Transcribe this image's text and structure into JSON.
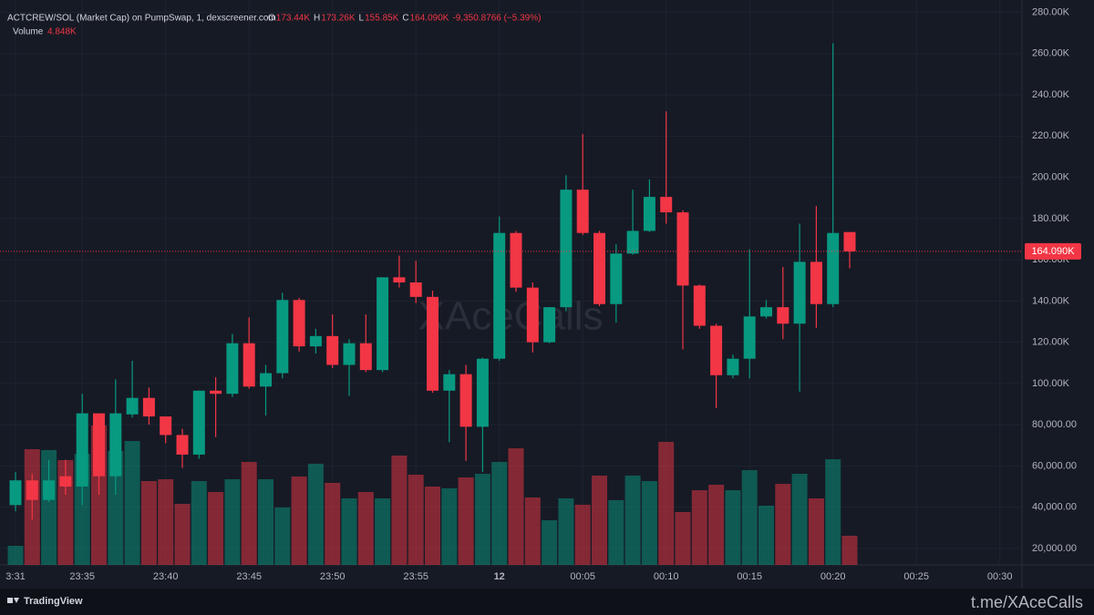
{
  "chart_data": {
    "type": "candlestick",
    "title": "ACTCREW/SOL (Market Cap) on PumpSwap, 1, dexscreener.com",
    "ohlc_legend": [
      {
        "key": "O",
        "text": "173.44K"
      },
      {
        "key": "H",
        "text": "173.26K"
      },
      {
        "key": "L",
        "text": "155.85K"
      },
      {
        "key": "C",
        "text": "164.090K"
      }
    ],
    "change_text": "-9,350.8766 (−5.39%)",
    "volume_title": "Volume",
    "volume_text": "4.848K",
    "last_label": "164.090K",
    "watermark": "XAceCalls",
    "brand": "TradingView",
    "footer_link": "t.me/XAceCalls",
    "up_color": "#089981",
    "down_color": "#f23645",
    "categories": [
      "3:31",
      null,
      null,
      null,
      "23:35",
      null,
      null,
      null,
      null,
      "23:40",
      null,
      null,
      null,
      null,
      "23:45",
      null,
      null,
      null,
      null,
      "23:50",
      null,
      null,
      null,
      null,
      "23:55",
      null,
      null,
      null,
      null,
      "12",
      null,
      null,
      null,
      null,
      "00:05",
      null,
      null,
      null,
      null,
      "00:10",
      null,
      null,
      null,
      null,
      "00:15",
      null,
      null,
      null,
      null,
      "00:20",
      null,
      null,
      null,
      null,
      "00:25",
      null,
      null,
      null,
      null,
      "00:30"
    ],
    "open": [
      41000,
      53000,
      43500,
      55000,
      50000,
      85500,
      55000,
      85000,
      93000,
      84000,
      75000,
      65500,
      96500,
      95000,
      119500,
      98500,
      105000,
      140500,
      118000,
      123000,
      109000,
      119500,
      106500,
      151500,
      149000,
      142000,
      96500,
      104500,
      79000,
      112000,
      173000,
      146500,
      120000,
      137000,
      194000,
      173000,
      138500,
      163000,
      174000,
      190500,
      183000,
      147500,
      128000,
      104000,
      112000,
      132500,
      137000,
      129000,
      159000,
      138500,
      173440,
      null,
      null,
      null,
      null,
      null,
      null,
      null,
      null,
      null
    ],
    "high": [
      57000,
      56000,
      63000,
      63000,
      95000,
      84500,
      102000,
      111000,
      98000,
      83000,
      78000,
      96500,
      103000,
      124000,
      132000,
      109000,
      144000,
      141500,
      126500,
      133500,
      121500,
      133500,
      151500,
      162000,
      159500,
      145000,
      106500,
      109000,
      112500,
      181000,
      174000,
      149000,
      137000,
      201000,
      221000,
      174000,
      167500,
      194000,
      199000,
      232000,
      184000,
      148000,
      129000,
      114000,
      165000,
      140500,
      156500,
      177500,
      186000,
      265000,
      173260,
      null,
      null,
      null,
      null,
      null,
      null,
      null,
      null,
      null
    ],
    "low": [
      38000,
      34000,
      42500,
      46000,
      41000,
      46000,
      46000,
      83500,
      80000,
      71000,
      59000,
      63500,
      74000,
      93500,
      97500,
      84500,
      102500,
      115500,
      114500,
      107500,
      94000,
      105500,
      105500,
      146500,
      139000,
      95500,
      71500,
      62500,
      57000,
      111000,
      144500,
      115000,
      119500,
      135000,
      172000,
      137500,
      129500,
      162500,
      173500,
      177500,
      116500,
      126500,
      88000,
      102500,
      102500,
      131500,
      121500,
      96000,
      127000,
      137000,
      155850,
      null,
      null,
      null,
      null,
      null,
      null,
      null,
      null,
      null
    ],
    "close": [
      53000,
      43500,
      53000,
      50000,
      85500,
      55000,
      85500,
      93000,
      84000,
      75000,
      65500,
      96500,
      95000,
      119500,
      98500,
      105000,
      140500,
      118000,
      123000,
      109000,
      119500,
      106500,
      151500,
      149000,
      142000,
      96500,
      104500,
      79000,
      112000,
      173000,
      146500,
      120000,
      137000,
      194000,
      173000,
      138500,
      163000,
      174000,
      190500,
      183000,
      147500,
      128000,
      104000,
      112000,
      132500,
      137000,
      129000,
      159000,
      138500,
      173000,
      164090,
      null,
      null,
      null,
      null,
      null,
      null,
      null,
      null,
      null
    ],
    "volume": [
      3182,
      19240,
      19090,
      17420,
      18480,
      23180,
      18940,
      20600,
      13940,
      14240,
      10150,
      13940,
      12120,
      14240,
      17120,
      14240,
      9540,
      14700,
      16820,
      13640,
      11060,
      12120,
      11060,
      18180,
      15000,
      13030,
      12730,
      14540,
      15150,
      17120,
      19390,
      11210,
      7420,
      11060,
      10000,
      14850,
      10760,
      14850,
      13940,
      20450,
      8790,
      12420,
      13330,
      12420,
      15760,
      9850,
      13480,
      15150,
      11060,
      17570,
      4848,
      null,
      null,
      null,
      null,
      null,
      null,
      null,
      null,
      null
    ],
    "ylim": [
      12000,
      286000
    ],
    "yticks": [
      {
        "value": 20000,
        "label": "20,000.00"
      },
      {
        "value": 40000,
        "label": "40,000.00"
      },
      {
        "value": 60000,
        "label": "60,000.00"
      },
      {
        "value": 80000,
        "label": "80,000.00"
      },
      {
        "value": 100000,
        "label": "100.00K"
      },
      {
        "value": 120000,
        "label": "120.00K"
      },
      {
        "value": 140000,
        "label": "140.00K"
      },
      {
        "value": 160000,
        "label": "160.00K"
      },
      {
        "value": 180000,
        "label": "180.00K"
      },
      {
        "value": 200000,
        "label": "200.00K"
      },
      {
        "value": 220000,
        "label": "220.00K"
      },
      {
        "value": 240000,
        "label": "240.00K"
      },
      {
        "value": 260000,
        "label": "260.00K"
      },
      {
        "value": 280000,
        "label": "280.00K"
      }
    ],
    "grid": true
  }
}
